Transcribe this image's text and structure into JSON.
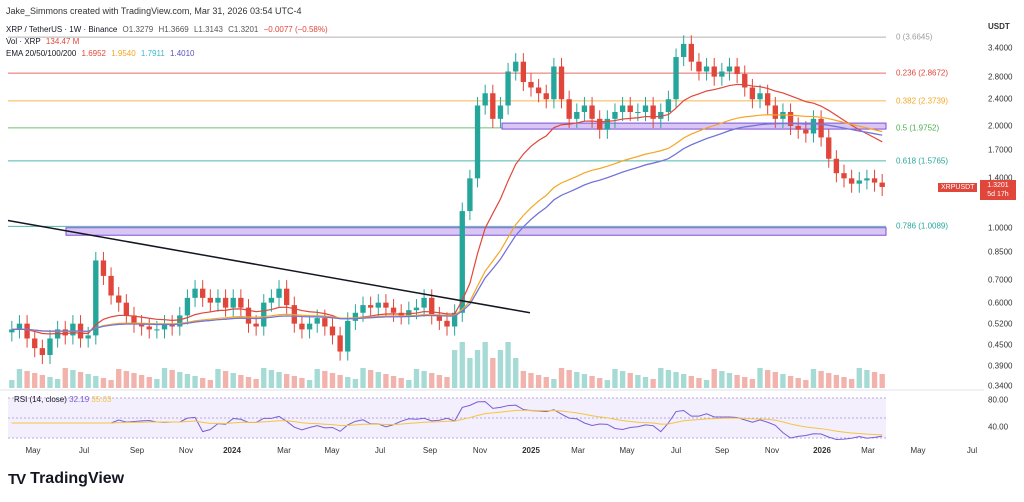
{
  "header": {
    "credit": "Jake_Simmons created with TradingView.com, Mar 31, 2026 03:54 UTC-4",
    "symbol": "XRP / TetherUS · 1W · Binance",
    "ohlc": {
      "o": "O1.3279",
      "h": "H1.3669",
      "l": "L1.3143",
      "c": "C1.3201",
      "chg": "−0.0077 (−0.58%)"
    },
    "vol_label": "Vol · XRP",
    "vol_value": "134.47 M",
    "ema_label": "EMA 20/50/100/200",
    "ema_values": [
      "1.6952",
      "1.9540",
      "1.7911",
      "1.4010"
    ]
  },
  "colors": {
    "ema20": "#e0463a",
    "ema50": "#f5a623",
    "ema100": "#6fd6e8",
    "ema200": "#7b6fd6",
    "up": "#26a69a",
    "down": "#e0463a"
  },
  "yaxis": {
    "currency": "USDT",
    "ticks": [
      "3.4000",
      "2.8000",
      "2.4000",
      "2.0000",
      "1.7000",
      "1.4000",
      "1.0000",
      "0.8500",
      "0.7000",
      "0.6000",
      "0.5200",
      "0.4500",
      "0.3900",
      "0.3400"
    ]
  },
  "last_price": {
    "symbol": "XRPUSDT",
    "value": "1.3201",
    "countdown": "5d 17h"
  },
  "fib_levels": [
    {
      "ratio": 0,
      "text": "0 (3.6645)",
      "price": 3.6645,
      "color": "#9e9e9e"
    },
    {
      "ratio": 0.236,
      "text": "0.236 (2.8672)",
      "price": 2.8672,
      "color": "#e0463a"
    },
    {
      "ratio": 0.382,
      "text": "0.382 (2.3739)",
      "price": 2.3739,
      "color": "#f5a623"
    },
    {
      "ratio": 0.5,
      "text": "0.5 (1.9752)",
      "price": 1.9752,
      "color": "#4caf50"
    },
    {
      "ratio": 0.618,
      "text": "0.618 (1.5765)",
      "price": 1.5765,
      "color": "#26a69a"
    },
    {
      "ratio": 0.786,
      "text": "0.786 (1.0089)",
      "price": 1.0089,
      "color": "#26a69a"
    }
  ],
  "xaxis": {
    "labels": [
      "May",
      "Jul",
      "Sep",
      "Nov",
      "2024",
      "Mar",
      "May",
      "Jul",
      "Sep",
      "Nov",
      "2025",
      "Mar",
      "May",
      "Jul",
      "Sep",
      "Nov",
      "2026",
      "Mar",
      "May",
      "Jul"
    ]
  },
  "rsi": {
    "label": "RSI (14, close)",
    "value": "32.19",
    "ma_value": "35.03",
    "ticks": [
      "80.00",
      "40.00"
    ]
  },
  "brand": {
    "name": "TradingView",
    "logo": "TV"
  },
  "chart_data": {
    "type": "candlestick",
    "interval": "1W",
    "y_scale": "log",
    "ylim": [
      0.34,
      3.9
    ],
    "x_range": [
      "2023-04",
      "2026-07"
    ],
    "closes_approx": [
      0.5,
      0.52,
      0.47,
      0.44,
      0.42,
      0.47,
      0.5,
      0.48,
      0.52,
      0.47,
      0.48,
      0.8,
      0.72,
      0.63,
      0.6,
      0.55,
      0.52,
      0.51,
      0.5,
      0.5,
      0.52,
      0.51,
      0.55,
      0.62,
      0.66,
      0.62,
      0.6,
      0.62,
      0.58,
      0.62,
      0.58,
      0.52,
      0.51,
      0.6,
      0.62,
      0.66,
      0.59,
      0.52,
      0.5,
      0.52,
      0.54,
      0.51,
      0.48,
      0.43,
      0.53,
      0.56,
      0.59,
      0.58,
      0.6,
      0.58,
      0.56,
      0.55,
      0.57,
      0.58,
      0.62,
      0.55,
      0.53,
      0.51,
      0.56,
      1.12,
      1.4,
      2.3,
      2.5,
      2.1,
      2.3,
      2.9,
      3.1,
      2.7,
      2.6,
      2.5,
      2.4,
      3.0,
      2.4,
      2.1,
      2.2,
      2.3,
      2.1,
      1.95,
      2.1,
      2.2,
      2.3,
      2.2,
      2.2,
      2.3,
      2.1,
      2.2,
      2.4,
      3.2,
      3.5,
      3.1,
      2.9,
      3.0,
      2.8,
      2.9,
      3.0,
      2.85,
      2.6,
      2.4,
      2.5,
      2.3,
      2.1,
      2.2,
      2.0,
      1.95,
      1.9,
      2.1,
      1.85,
      1.6,
      1.45,
      1.4,
      1.35,
      1.38,
      1.4,
      1.36,
      1.32
    ],
    "trendline": {
      "from": [
        "2023-03",
        1.05
      ],
      "to": [
        "2024-12",
        0.56
      ]
    },
    "zones": [
      {
        "from_price": 1.0,
        "to_price": 0.95,
        "label": "0.786 zone"
      },
      {
        "from_price": 2.04,
        "to_price": 1.96,
        "label": "0.5 zone"
      }
    ],
    "rsi_ylim": [
      20,
      100
    ]
  }
}
